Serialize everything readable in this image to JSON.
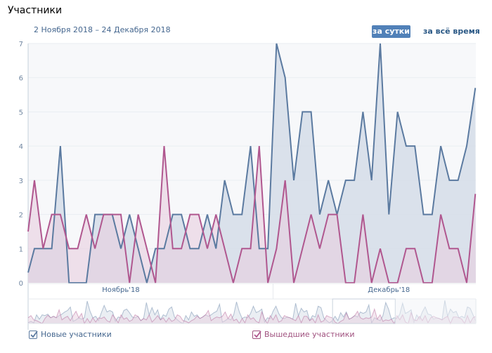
{
  "header": {
    "title": "Участники",
    "date_range": "2 Ноября 2018 – 24 Декабря 2018",
    "period_buttons": [
      {
        "label": "за сутки",
        "active": true
      },
      {
        "label": "за всё время",
        "active": false
      }
    ]
  },
  "legend": [
    {
      "label": "Новые участники",
      "checked": true,
      "color": "#5b7aa0"
    },
    {
      "label": "Вышедшие участники",
      "checked": true,
      "color": "#b0578f"
    }
  ],
  "chart_data": {
    "type": "area",
    "title": "Участники",
    "subtitle": "2 Ноября 2018 – 24 Декабря 2018",
    "xlabel": "",
    "ylabel": "",
    "ylim": [
      0,
      7
    ],
    "yticks": [
      0,
      1,
      2,
      3,
      4,
      5,
      6,
      7
    ],
    "grid": true,
    "x_month_labels": [
      {
        "label": "Ноябрь'18",
        "index": 11
      },
      {
        "label": "Декабрь'18",
        "index": 42
      }
    ],
    "month_separator_index": 28.6,
    "series": [
      {
        "name": "Новые участники",
        "color": "#5b7aa0",
        "fill": "#d5dde8",
        "values": [
          0.3,
          1,
          1,
          1,
          4,
          0,
          0,
          0,
          2,
          2,
          2,
          1,
          2,
          1,
          0,
          1,
          1,
          2,
          2,
          1,
          1,
          2,
          1,
          3,
          2,
          2,
          4,
          1,
          1,
          7,
          6,
          3,
          5,
          5,
          2,
          3,
          2,
          3,
          3,
          5,
          3,
          7,
          2,
          5,
          4,
          4,
          2,
          2,
          4,
          3,
          3,
          4,
          5.7
        ]
      },
      {
        "name": "Вышедшие участники",
        "color": "#b0578f",
        "fill": "#e8cfe0",
        "values": [
          1.5,
          3,
          1,
          2,
          2,
          1,
          1,
          2,
          1,
          2,
          2,
          2,
          0,
          2,
          1,
          0,
          4,
          1,
          1,
          2,
          2,
          1,
          2,
          1,
          0,
          1,
          1,
          4,
          0,
          1,
          3,
          0,
          1,
          2,
          1,
          2,
          2,
          0,
          0,
          2,
          0,
          1,
          0,
          0,
          1,
          1,
          0,
          0,
          2,
          1,
          1,
          0,
          2.6
        ]
      }
    ],
    "navigator": {
      "selected_range_fraction": [
        0.68,
        0.82
      ]
    }
  }
}
